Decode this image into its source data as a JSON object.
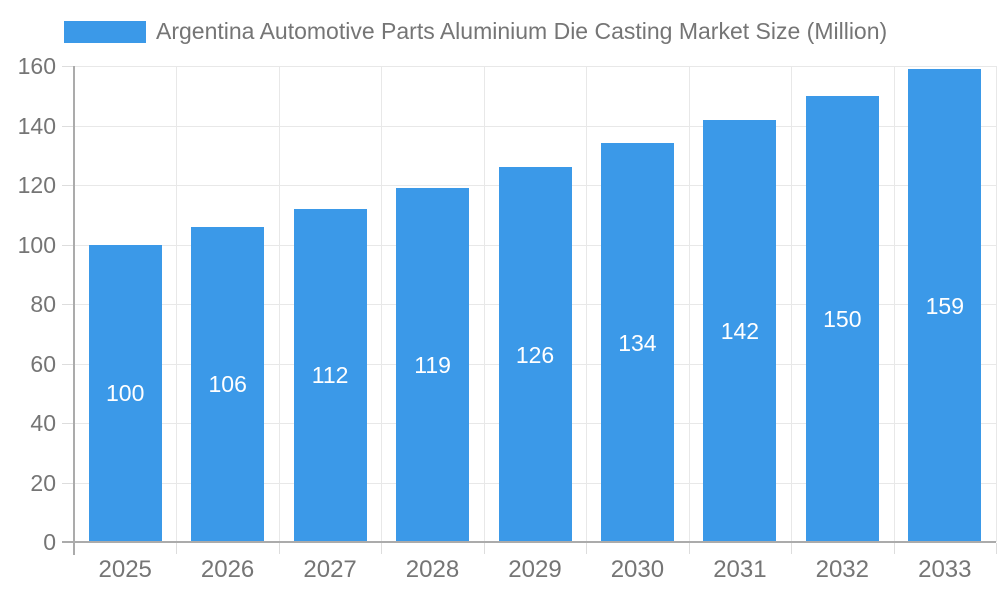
{
  "legend": {
    "label": "Argentina Automotive Parts Aluminium Die Casting Market Size (Million)",
    "position": "top"
  },
  "chart_data": {
    "type": "bar",
    "title": "",
    "xlabel": "",
    "ylabel": "",
    "categories": [
      "2025",
      "2026",
      "2027",
      "2028",
      "2029",
      "2030",
      "2031",
      "2032",
      "2033"
    ],
    "series": [
      {
        "name": "Argentina Automotive Parts Aluminium Die Casting Market Size (Million)",
        "values": [
          100,
          106,
          112,
          119,
          126,
          134,
          142,
          150,
          159
        ]
      }
    ],
    "value_labels_shown": true,
    "ylim": [
      0,
      160
    ],
    "ytick_step": 20,
    "yticks": [
      0,
      20,
      40,
      60,
      80,
      100,
      120,
      140,
      160
    ],
    "grid": true,
    "legend_position": "top",
    "colors": {
      "bar": "#3B99E8",
      "value_label": "#FFFFFF",
      "axis_text": "#757575",
      "axis_line": "#ABABAB",
      "gridline": "#E8E8E8",
      "tick": "#DDDDDD",
      "background": "#FFFFFF"
    }
  }
}
